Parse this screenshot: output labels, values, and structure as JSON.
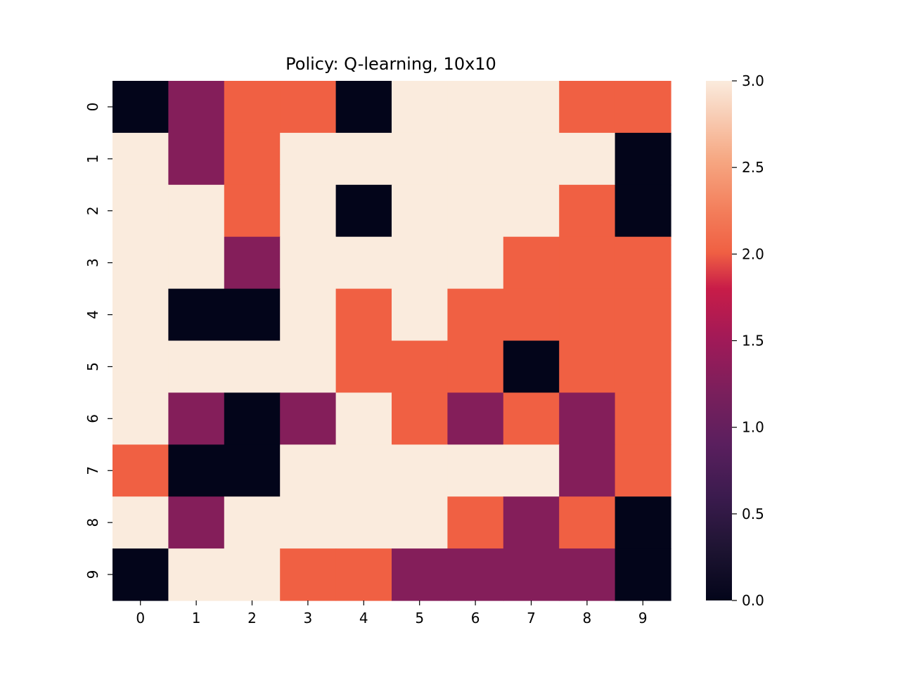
{
  "chart_data": {
    "type": "heatmap",
    "title": "Policy: Q-learning, 10x10",
    "xlabel": "",
    "ylabel": "",
    "x_ticks": [
      "0",
      "1",
      "2",
      "3",
      "4",
      "5",
      "6",
      "7",
      "8",
      "9"
    ],
    "y_ticks": [
      "0",
      "1",
      "2",
      "3",
      "4",
      "5",
      "6",
      "7",
      "8",
      "9"
    ],
    "values": [
      [
        0,
        1,
        2,
        2,
        0,
        3,
        3,
        3,
        2,
        2
      ],
      [
        3,
        1,
        2,
        3,
        3,
        3,
        3,
        3,
        3,
        0
      ],
      [
        3,
        3,
        2,
        3,
        0,
        3,
        3,
        3,
        2,
        0
      ],
      [
        3,
        3,
        1,
        3,
        3,
        3,
        3,
        2,
        2,
        2
      ],
      [
        3,
        0,
        0,
        3,
        2,
        3,
        2,
        2,
        2,
        2
      ],
      [
        3,
        3,
        3,
        3,
        2,
        2,
        2,
        0,
        2,
        2
      ],
      [
        3,
        1,
        0,
        1,
        3,
        2,
        1,
        2,
        1,
        2
      ],
      [
        2,
        0,
        0,
        3,
        3,
        3,
        3,
        3,
        1,
        2
      ],
      [
        3,
        1,
        3,
        3,
        3,
        3,
        2,
        1,
        2,
        0
      ],
      [
        0,
        3,
        3,
        2,
        2,
        1,
        1,
        1,
        1,
        0
      ]
    ],
    "colorbar": {
      "range": [
        0,
        3
      ],
      "ticks": [
        "0.0",
        "0.5",
        "1.0",
        "1.5",
        "2.0",
        "2.5",
        "3.0"
      ]
    },
    "colormap": "rocket",
    "colors": {
      "0": "#03051a",
      "1": "#841e5a",
      "2": "#f06043",
      "3": "#faebdd"
    },
    "grid": false
  }
}
